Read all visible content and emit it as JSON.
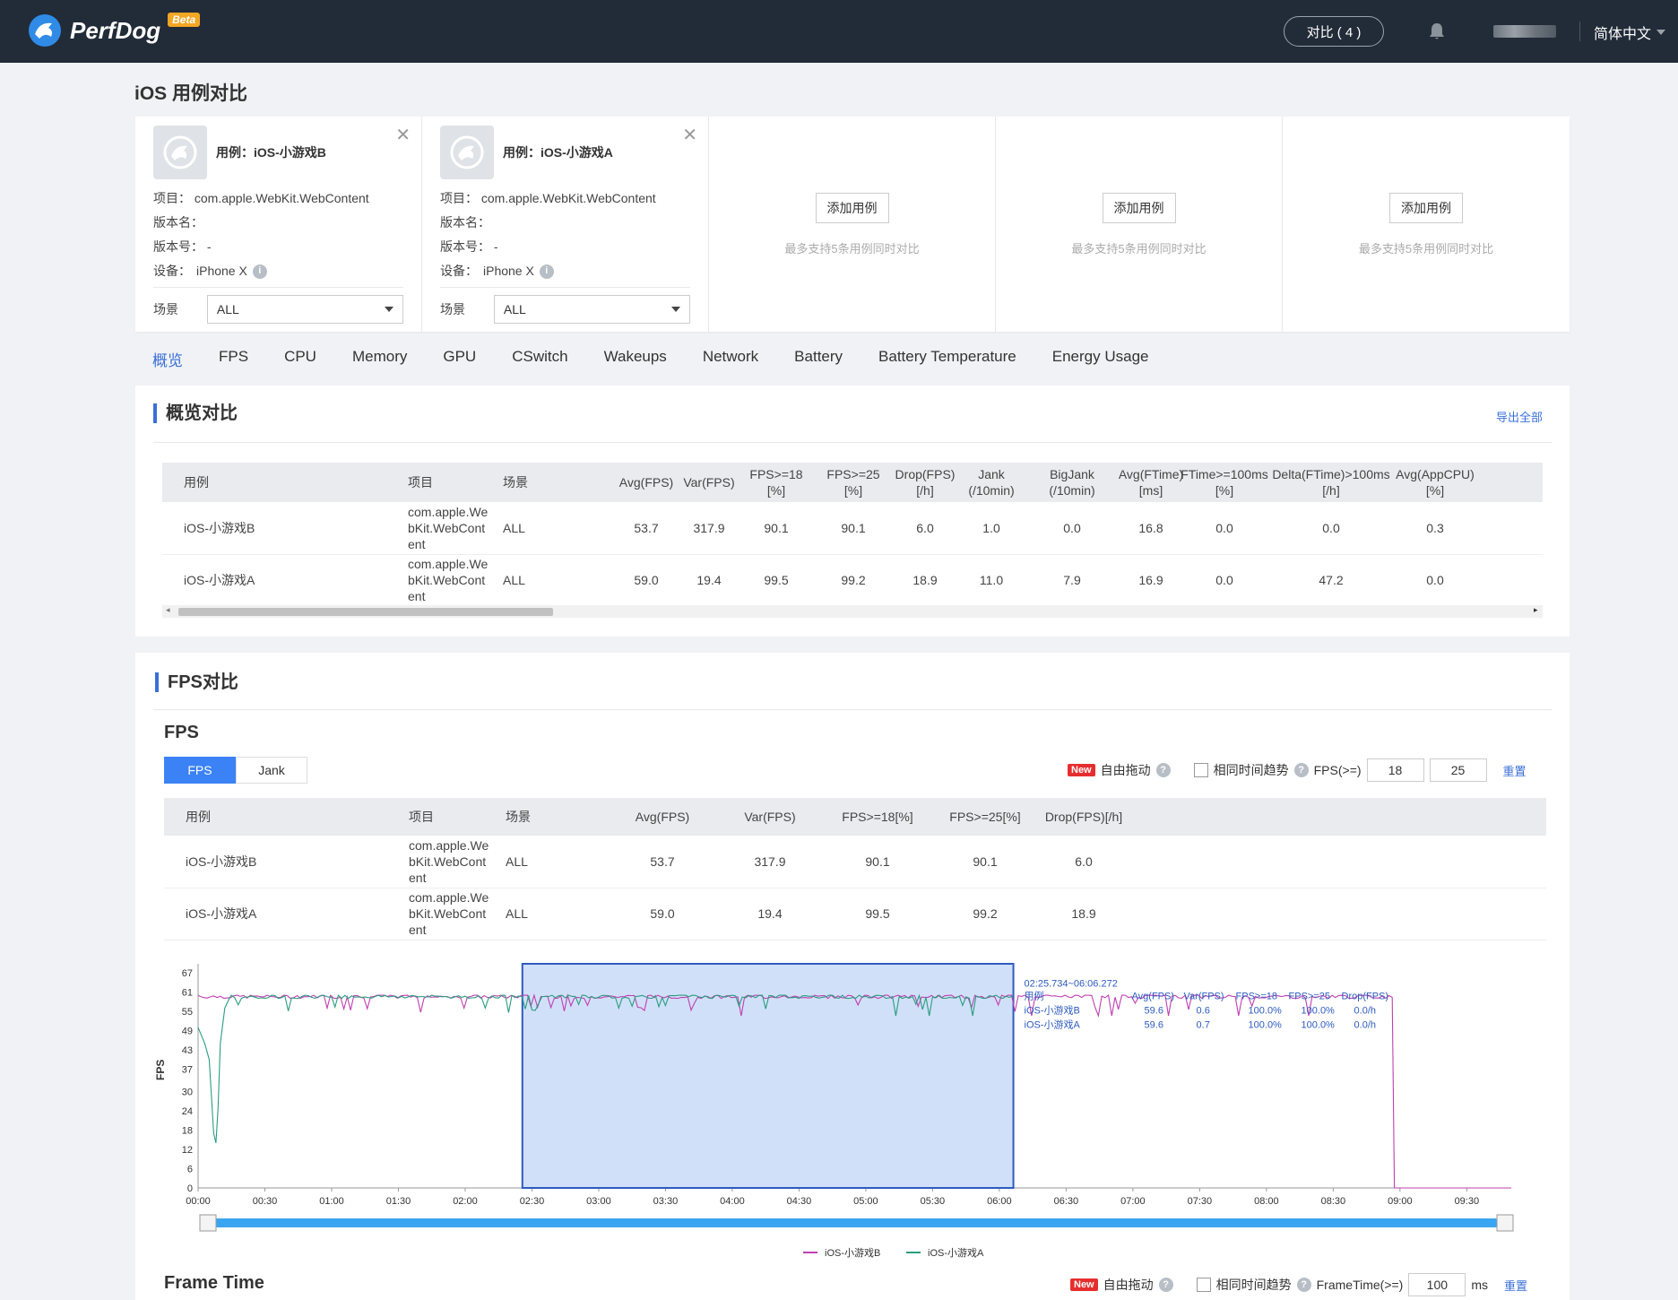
{
  "header": {
    "logo_text": "PerfDog",
    "beta_label": "Beta",
    "compare_label": "对比 ( 4 )",
    "language": "简体中文"
  },
  "page_title": "iOS 用例对比",
  "cards": [
    {
      "name": "用例：iOS-小游戏B",
      "project": "项目： com.apple.WebKit.WebContent",
      "version_name": "版本名：",
      "version_no": "版本号： -",
      "device_label": "设备：",
      "device": "iPhone X",
      "scene_label": "场景",
      "scene_value": "ALL"
    },
    {
      "name": "用例：iOS-小游戏A",
      "project": "项目： com.apple.WebKit.WebContent",
      "version_name": "版本名：",
      "version_no": "版本号： -",
      "device_label": "设备：",
      "device": "iPhone X",
      "scene_label": "场景",
      "scene_value": "ALL"
    }
  ],
  "empty_cards": {
    "add_label": "添加用例",
    "hint": "最多支持5条用例同时对比"
  },
  "tabs": [
    "概览",
    "FPS",
    "CPU",
    "Memory",
    "GPU",
    "CSwitch",
    "Wakeups",
    "Network",
    "Battery",
    "Battery Temperature",
    "Energy Usage"
  ],
  "overview": {
    "title": "概览对比",
    "export_label": "导出全部",
    "columns": [
      "用例",
      "项目",
      "场景",
      "Avg(FPS)",
      "Var(FPS)",
      "FPS>=18\n[%]",
      "FPS>=25\n[%]",
      "Drop(FPS)\n[/h]",
      "Jank\n(/10min)",
      "BigJank\n(/10min)",
      "Avg(FTime)\n[ms]",
      "FTime>=100ms\n[%]",
      "Delta(FTime)>100ms\n[/h]",
      "Avg(AppCPU)\n[%]"
    ],
    "rows": [
      [
        "iOS-小游戏B",
        "com.apple.We\nbKit.WebCont\nent",
        "ALL",
        "53.7",
        "317.9",
        "90.1",
        "90.1",
        "6.0",
        "1.0",
        "0.0",
        "16.8",
        "0.0",
        "0.0",
        "0.3"
      ],
      [
        "iOS-小游戏A",
        "com.apple.We\nbKit.WebCont\nent",
        "ALL",
        "59.0",
        "19.4",
        "99.5",
        "99.2",
        "18.9",
        "11.0",
        "7.9",
        "16.9",
        "0.0",
        "47.2",
        "0.0"
      ]
    ]
  },
  "fps_section": {
    "title": "FPS对比",
    "subtitle": "FPS",
    "toggle": [
      "FPS",
      "Jank"
    ],
    "new_badge": "New",
    "free_drag": "自由拖动",
    "same_time": "相同时间趋势",
    "fps_ge": "FPS(>=)",
    "threshold_1": "18",
    "threshold_2": "25",
    "reset": "重置",
    "columns": [
      "用例",
      "项目",
      "场景",
      "Avg(FPS)",
      "Var(FPS)",
      "FPS>=18[%]",
      "FPS>=25[%]",
      "Drop(FPS)[/h]"
    ],
    "rows": [
      [
        "iOS-小游戏B",
        "com.apple.We\nbKit.WebCont\nent",
        "ALL",
        "53.7",
        "317.9",
        "90.1",
        "90.1",
        "6.0"
      ],
      [
        "iOS-小游戏A",
        "com.apple.We\nbKit.WebCont\nent",
        "ALL",
        "59.0",
        "19.4",
        "99.5",
        "99.2",
        "18.9"
      ]
    ]
  },
  "chart_data": {
    "type": "line",
    "ylabel": "FPS",
    "yticks": [
      0,
      6,
      12,
      18,
      24,
      30,
      37,
      43,
      49,
      55,
      61,
      67
    ],
    "ylim": [
      0,
      67
    ],
    "xticks": [
      "00:00",
      "00:30",
      "01:00",
      "01:30",
      "02:00",
      "02:30",
      "03:00",
      "03:30",
      "04:00",
      "04:30",
      "05:00",
      "05:30",
      "06:00",
      "06:30",
      "07:00",
      "07:30",
      "08:00",
      "08:30",
      "09:00",
      "09:30"
    ],
    "xlim_seconds": [
      0,
      590
    ],
    "selection": {
      "start_s": 145.7,
      "end_s": 366.3,
      "label": "02:25.734~06:06.272"
    },
    "series": [
      {
        "name": "iOS-小游戏B",
        "color": "#c03fb2",
        "end_s": 537,
        "level": 59.6
      },
      {
        "name": "iOS-小游戏A",
        "color": "#2a9d7f",
        "end_s": 366,
        "level": 59.6,
        "initial_dip": [
          [
            0,
            50
          ],
          [
            3,
            45
          ],
          [
            5,
            40
          ],
          [
            7,
            17
          ],
          [
            8,
            14
          ],
          [
            9,
            25
          ],
          [
            10,
            45
          ],
          [
            12,
            56
          ],
          [
            14,
            59
          ]
        ]
      }
    ],
    "tooltip": {
      "header": [
        "用例",
        "Avg(FPS)",
        "Var(FPS)",
        "FPS>=18",
        "FPS>=25",
        "Drop(FPS)"
      ],
      "rows": [
        [
          "iOS-小游戏B",
          "59.6",
          "0.6",
          "100.0%",
          "100.0%",
          "0.0/h"
        ],
        [
          "iOS-小游戏A",
          "59.6",
          "0.7",
          "100.0%",
          "100.0%",
          "0.0/h"
        ]
      ]
    },
    "legend": [
      "iOS-小游戏B",
      "iOS-小游戏A"
    ]
  },
  "frametime": {
    "title": "Frame Time",
    "new_badge": "New",
    "free_drag": "自由拖动",
    "same_time": "相同时间趋势",
    "ft_ge": "FrameTime(>=)",
    "threshold": "100",
    "unit": "ms",
    "reset": "重置"
  },
  "colors": {
    "accent": "#3a6fd8",
    "topbar": "#222b38",
    "selection": "#c9daf8"
  }
}
